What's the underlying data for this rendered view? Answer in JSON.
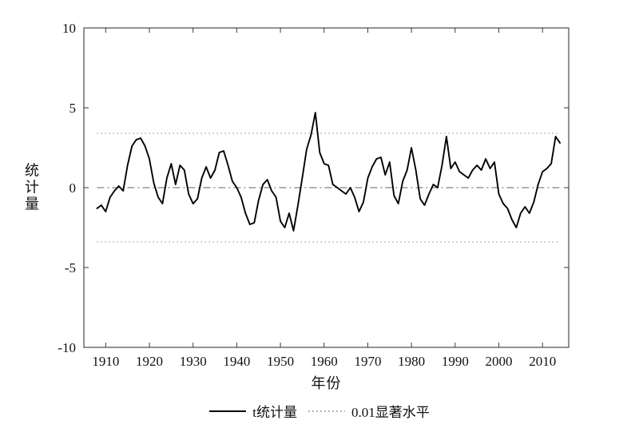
{
  "figure": {
    "background": "#ffffff",
    "axis_color": "#3a3a3a",
    "text_color": "#111111"
  },
  "chart_data": {
    "type": "line",
    "title": "",
    "xlabel": "年份",
    "ylabel": "统计量",
    "xlim": [
      1905,
      2016
    ],
    "ylim": [
      -10,
      10
    ],
    "xticks": [
      1910,
      1920,
      1930,
      1940,
      1950,
      1960,
      1970,
      1980,
      1990,
      2000,
      2010
    ],
    "yticks": [
      -10,
      -5,
      0,
      5,
      10
    ],
    "grid": false,
    "legend_position": "bottom-center",
    "series": [
      {
        "name": "t统计量",
        "color": "#000000",
        "style": "solid",
        "x_start": 1908,
        "x_step": 1,
        "values": [
          -1.3,
          -1.1,
          -1.5,
          -0.6,
          -0.2,
          0.1,
          -0.2,
          1.4,
          2.6,
          3.0,
          3.1,
          2.6,
          1.8,
          0.3,
          -0.6,
          -1.0,
          0.6,
          1.5,
          0.2,
          1.4,
          1.1,
          -0.4,
          -1.0,
          -0.7,
          0.6,
          1.3,
          0.6,
          1.1,
          2.2,
          2.3,
          1.4,
          0.4,
          0.0,
          -0.6,
          -1.6,
          -2.3,
          -2.2,
          -0.8,
          0.2,
          0.5,
          -0.2,
          -0.6,
          -2.1,
          -2.5,
          -1.6,
          -2.7,
          -1.1,
          0.6,
          2.4,
          3.3,
          4.7,
          2.2,
          1.5,
          1.4,
          0.2,
          0.0,
          -0.2,
          -0.4,
          0.0,
          -0.6,
          -1.5,
          -0.9,
          0.6,
          1.3,
          1.8,
          1.9,
          0.8,
          1.6,
          -0.5,
          -1.0,
          0.4,
          1.1,
          2.5,
          1.1,
          -0.7,
          -1.1,
          -0.4,
          0.2,
          0.0,
          1.4,
          3.2,
          1.2,
          1.6,
          1.0,
          0.8,
          0.6,
          1.1,
          1.4,
          1.1,
          1.8,
          1.2,
          1.6,
          -0.4,
          -1.0,
          -1.3,
          -2.0,
          -2.5,
          -1.6,
          -1.2,
          -1.6,
          -0.9,
          0.2,
          1.0,
          1.2,
          1.5,
          3.2,
          2.8
        ]
      }
    ],
    "reference_lines": [
      {
        "name": "zero",
        "y": 0,
        "color": "#808080",
        "style": "dashdot"
      },
      {
        "name": "significance-upper",
        "y": 3.4,
        "color": "#b3b3b3",
        "style": "dotted"
      },
      {
        "name": "significance-lower",
        "y": -3.4,
        "color": "#b3b3b3",
        "style": "dotted"
      }
    ],
    "legend": [
      {
        "label": "t统计量",
        "style": "solid",
        "color": "#000000"
      },
      {
        "label": "0.01显著水平",
        "style": "dotted",
        "color": "#b3b3b3"
      }
    ]
  }
}
